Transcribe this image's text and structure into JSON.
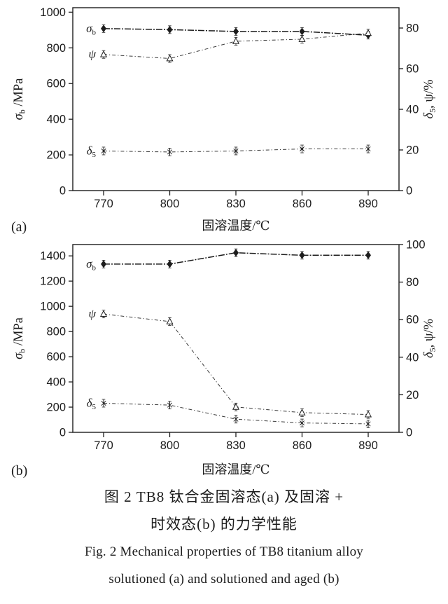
{
  "colors": {
    "ink": "#1c1c1c",
    "line_light": "#3a3a3a",
    "background": "#ffffff"
  },
  "figure_caption": {
    "zh_line1": "图 2  TB8 钛合金固溶态(a) 及固溶 +",
    "zh_line2": "时效态(b) 的力学性能",
    "en_line1": "Fig. 2  Mechanical properties of TB8 titanium alloy",
    "en_line2": "solutioned (a) and solutioned and aged (b)"
  },
  "chart_data": [
    {
      "id": "a",
      "type": "line",
      "panel_label": "(a)",
      "x": [
        770,
        800,
        830,
        860,
        890
      ],
      "xlabel": "固溶温度/℃",
      "ylabel_left": {
        "base": "σ",
        "sub": "b",
        "rest": " /MPa"
      },
      "ylabel_right": {
        "base": "δ",
        "sub": "5",
        "rest": ", ψ/%"
      },
      "axes": {
        "left": {
          "min": 0,
          "max": 1025,
          "ticks": [
            0,
            200,
            400,
            600,
            800,
            1000
          ]
        },
        "right": {
          "min": 0,
          "max": 90,
          "ticks": [
            0,
            20,
            40,
            60,
            80
          ]
        }
      },
      "grid": false,
      "legend_position": "inline-left",
      "series": [
        {
          "name": "σb",
          "label_base": "σ",
          "label_sub": "b",
          "axis": "left",
          "marker": "filled-diamond",
          "line": "dashdot-dense",
          "values": [
            908,
            902,
            892,
            892,
            871
          ]
        },
        {
          "name": "ψ",
          "label_base": "ψ",
          "label_sub": "",
          "axis": "right",
          "marker": "open-triangle",
          "line": "dashdot",
          "values": [
            67,
            65,
            73.5,
            74.5,
            77.5
          ]
        },
        {
          "name": "δ5",
          "label_base": "δ",
          "label_sub": "5",
          "axis": "right",
          "marker": "asterisk",
          "line": "dashdot",
          "values": [
            19.5,
            19,
            19.5,
            20.5,
            20.5
          ]
        }
      ]
    },
    {
      "id": "b",
      "type": "line",
      "panel_label": "(b)",
      "x": [
        770,
        800,
        830,
        860,
        890
      ],
      "xlabel": "固溶温度/℃",
      "ylabel_left": {
        "base": "σ",
        "sub": "b",
        "rest": " /MPa"
      },
      "ylabel_right": {
        "base": "δ",
        "sub": "5",
        "rest": ", ψ/%"
      },
      "axes": {
        "left": {
          "min": 0,
          "max": 1490,
          "ticks": [
            0,
            200,
            400,
            600,
            800,
            1000,
            1200,
            1400
          ]
        },
        "right": {
          "min": 0,
          "max": 100,
          "ticks": [
            0,
            20,
            40,
            60,
            80,
            100
          ]
        }
      },
      "grid": false,
      "legend_position": "inline-left",
      "series": [
        {
          "name": "σb",
          "label_base": "σ",
          "label_sub": "b",
          "axis": "left",
          "marker": "filled-diamond",
          "line": "dashdot-dense",
          "values": [
            1335,
            1335,
            1425,
            1405,
            1405
          ]
        },
        {
          "name": "ψ",
          "label_base": "ψ",
          "label_sub": "",
          "axis": "right",
          "marker": "open-triangle",
          "line": "dashdot",
          "values": [
            63,
            59,
            13.5,
            10.5,
            9.5
          ]
        },
        {
          "name": "δ5",
          "label_base": "δ",
          "label_sub": "5",
          "axis": "right",
          "marker": "asterisk",
          "line": "dashdot",
          "values": [
            15.5,
            14.5,
            7,
            5,
            4.5
          ]
        }
      ]
    }
  ]
}
